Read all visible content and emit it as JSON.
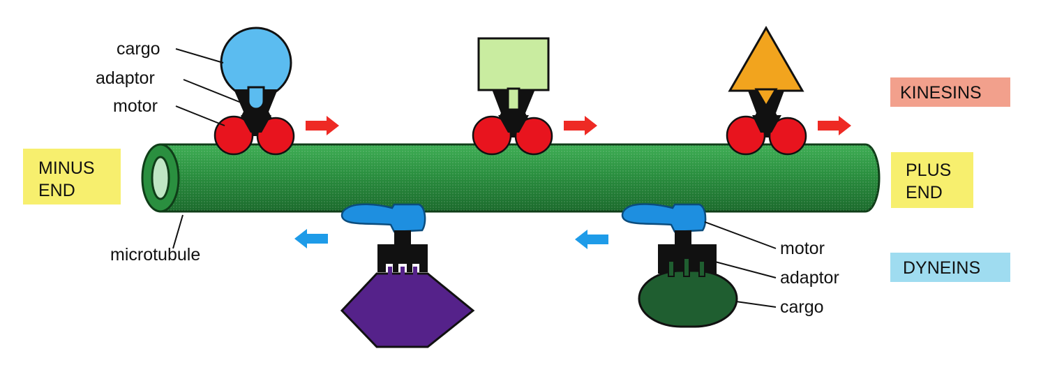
{
  "labels": {
    "kinesins": "KINESINS",
    "dyneins": "DYNEINS",
    "minus_end_line1": "MINUS",
    "minus_end_line2": "END",
    "plus_end_line1": "PLUS",
    "plus_end_line2": "END",
    "microtubule": "microtubule",
    "kinesin_cargo": "cargo",
    "kinesin_adaptor": "adaptor",
    "kinesin_motor": "motor",
    "dynein_motor": "motor",
    "dynein_adaptor": "adaptor",
    "dynein_cargo": "cargo"
  },
  "colors": {
    "microtubule": "#2a8f3f",
    "microtubule_dark": "#1e6a2d",
    "kinesin_motor": "#e8141e",
    "dynein_motor": "#1e8fe0",
    "motor_black": "#111111",
    "kinesin_arrow": "#ee2a24",
    "dynein_arrow": "#1e9be8",
    "end_label_bg": "#f7ef6e",
    "kinesins_label_bg": "#f2a08c",
    "dyneins_label_bg": "#9fdcf0",
    "cargo_circle": "#5bbcf0",
    "cargo_square": "#c9eca0",
    "cargo_triangle": "#f2a41e",
    "cargo_hexagon": "#55228a",
    "cargo_oval": "#1f5e30"
  }
}
